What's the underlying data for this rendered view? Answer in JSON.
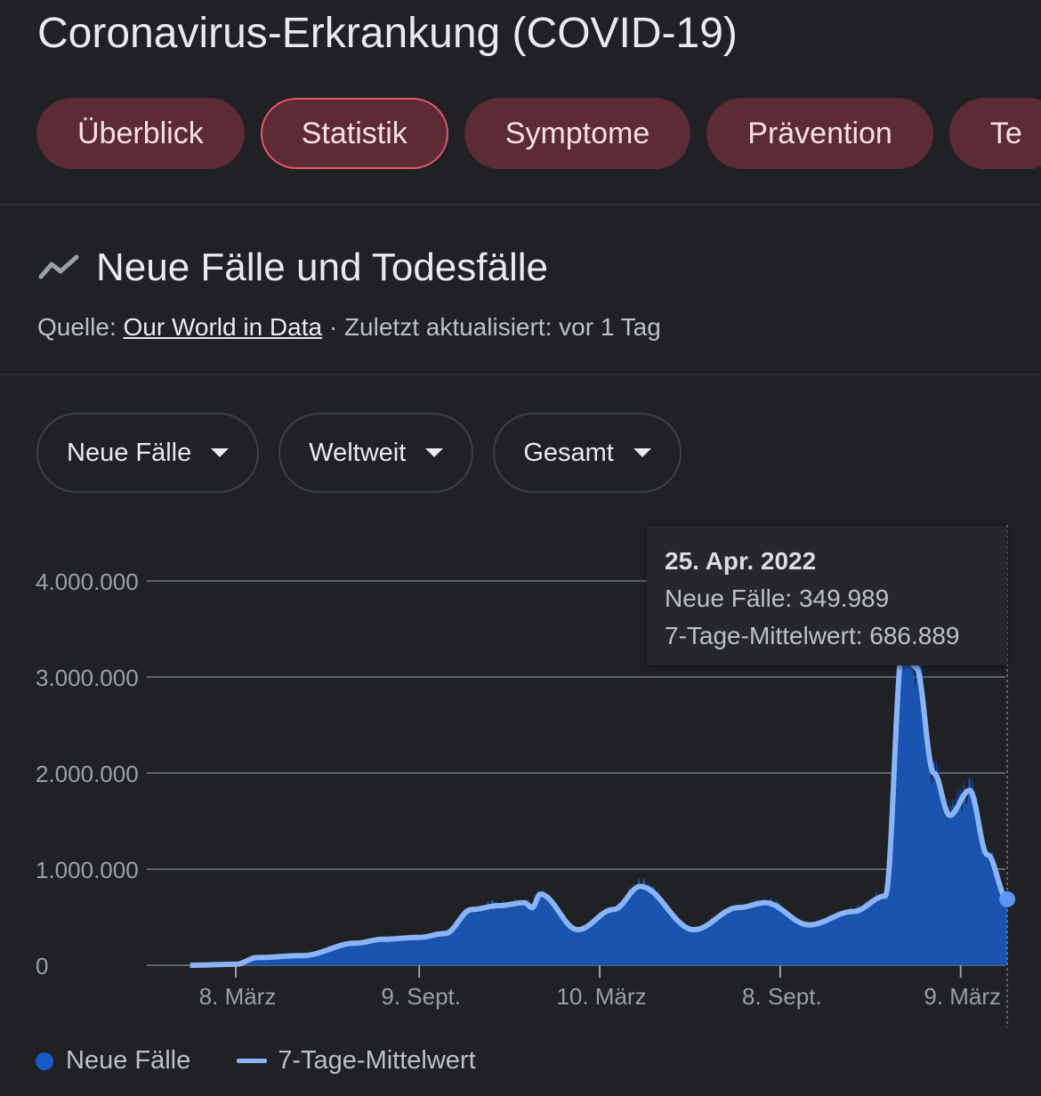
{
  "page_title": "Coronavirus-Erkrankung (COVID-19)",
  "tabs": [
    {
      "label": "Überblick",
      "selected": false
    },
    {
      "label": "Statistik",
      "selected": true
    },
    {
      "label": "Symptome",
      "selected": false
    },
    {
      "label": "Prävention",
      "selected": false
    },
    {
      "label": "Te",
      "selected": false
    }
  ],
  "section": {
    "title": "Neue Fälle und Todesfälle",
    "icon": "trending-line-icon",
    "source_prefix": "Quelle: ",
    "source_link": "Our World in Data",
    "updated": " · Zuletzt aktualisiert: vor 1 Tag"
  },
  "filters": [
    {
      "label": "Neue Fälle"
    },
    {
      "label": "Weltweit"
    },
    {
      "label": "Gesamt"
    }
  ],
  "tooltip": {
    "date": "25. Apr. 2022",
    "cases_line": "Neue Fälle: 349.989",
    "avg_line": "7-Tage-Mittelwert: 686.889"
  },
  "legend": {
    "cases": "Neue Fälle",
    "avg": "7-Tage-Mittelwert"
  },
  "colors": {
    "area": "#1a53b0",
    "line": "#8ab4f8",
    "dot": "#5b95f5",
    "grid": "#5f6368"
  },
  "chart_data": {
    "type": "area",
    "title": "Neue Fälle und Todesfälle",
    "ylim": [
      0,
      4000000
    ],
    "y_ticks": [
      {
        "value": 0,
        "label": "0"
      },
      {
        "value": 1000000,
        "label": "1.000.000"
      },
      {
        "value": 2000000,
        "label": "2.000.000"
      },
      {
        "value": 3000000,
        "label": "3.000.000"
      },
      {
        "value": 4000000,
        "label": "4.000.000"
      }
    ],
    "x_ticks": [
      {
        "date": "2020-03-08",
        "label": "8. März"
      },
      {
        "date": "2020-09-09",
        "label": "9. Sept."
      },
      {
        "date": "2021-03-10",
        "label": "10. März"
      },
      {
        "date": "2021-09-08",
        "label": "8. Sept."
      },
      {
        "date": "2022-03-09",
        "label": "9. März"
      }
    ],
    "x_range": [
      "2020-01-22",
      "2022-04-25"
    ],
    "series": [
      {
        "name": "7-Tage-Mittelwert",
        "points": [
          [
            "2020-01-22",
            0
          ],
          [
            "2020-03-08",
            10000
          ],
          [
            "2020-03-30",
            80000
          ],
          [
            "2020-05-14",
            100000
          ],
          [
            "2020-07-07",
            230000
          ],
          [
            "2020-08-03",
            270000
          ],
          [
            "2020-09-09",
            290000
          ],
          [
            "2020-10-05",
            330000
          ],
          [
            "2020-11-01",
            580000
          ],
          [
            "2020-11-28",
            620000
          ],
          [
            "2020-12-24",
            650000
          ],
          [
            "2021-01-01",
            600000
          ],
          [
            "2021-01-09",
            740000
          ],
          [
            "2021-02-16",
            370000
          ],
          [
            "2021-03-24",
            580000
          ],
          [
            "2021-04-20",
            820000
          ],
          [
            "2021-06-13",
            370000
          ],
          [
            "2021-07-28",
            600000
          ],
          [
            "2021-08-24",
            650000
          ],
          [
            "2021-10-07",
            420000
          ],
          [
            "2021-11-21",
            560000
          ],
          [
            "2021-12-23",
            720000
          ],
          [
            "2022-01-10",
            3350000
          ],
          [
            "2022-01-23",
            3100000
          ],
          [
            "2022-02-10",
            2000000
          ],
          [
            "2022-02-26",
            1560000
          ],
          [
            "2022-03-18",
            1820000
          ],
          [
            "2022-04-05",
            1150000
          ],
          [
            "2022-04-25",
            686889
          ]
        ]
      },
      {
        "name": "Neue Fälle",
        "note": "daily values drawn as filled area",
        "last_value": 349989
      }
    ],
    "legend_position": "bottom-left",
    "grid": true
  }
}
